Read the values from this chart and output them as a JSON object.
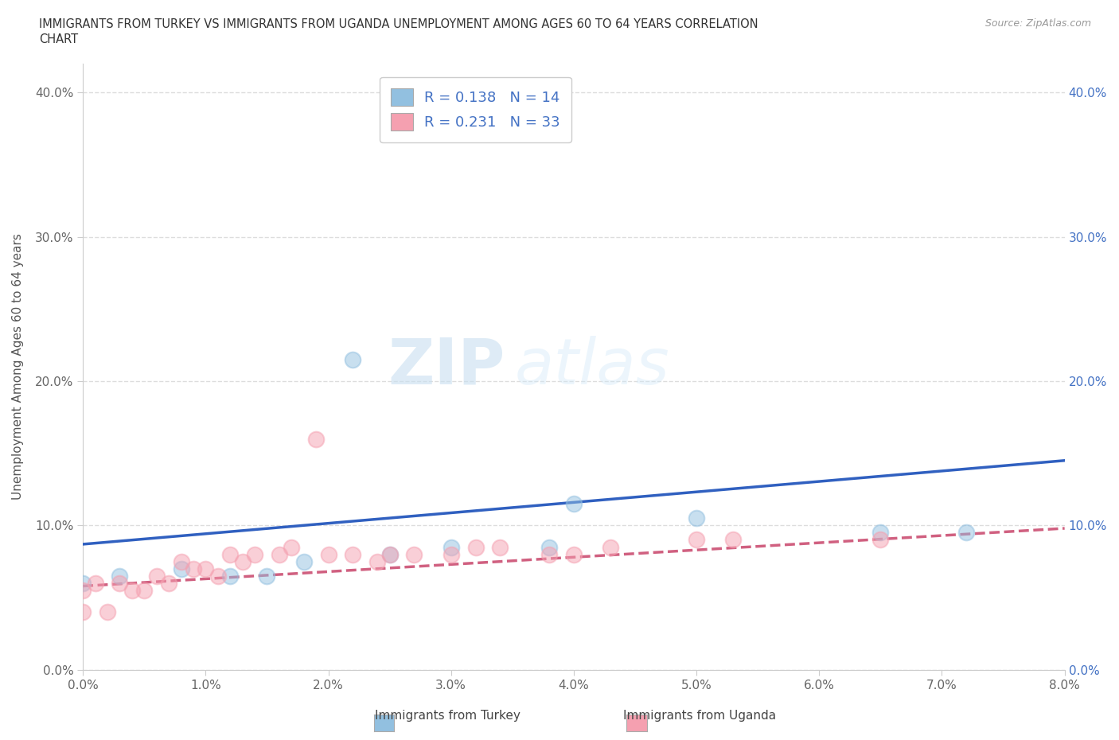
{
  "title_line1": "IMMIGRANTS FROM TURKEY VS IMMIGRANTS FROM UGANDA UNEMPLOYMENT AMONG AGES 60 TO 64 YEARS CORRELATION",
  "title_line2": "CHART",
  "source": "Source: ZipAtlas.com",
  "ylabel": "Unemployment Among Ages 60 to 64 years",
  "xlim": [
    0.0,
    0.08
  ],
  "ylim": [
    0.0,
    0.42
  ],
  "xticks": [
    0.0,
    0.01,
    0.02,
    0.03,
    0.04,
    0.05,
    0.06,
    0.07,
    0.08
  ],
  "xticklabels": [
    "0.0%",
    "1.0%",
    "2.0%",
    "3.0%",
    "4.0%",
    "5.0%",
    "6.0%",
    "7.0%",
    "8.0%"
  ],
  "yticks": [
    0.0,
    0.1,
    0.2,
    0.3,
    0.4
  ],
  "yticklabels": [
    "0.0%",
    "10.0%",
    "20.0%",
    "30.0%",
    "40.0%"
  ],
  "turkey_R": 0.138,
  "turkey_N": 14,
  "uganda_R": 0.231,
  "uganda_N": 33,
  "turkey_color": "#92c0e0",
  "uganda_color": "#f5a0b0",
  "turkey_line_color": "#3060c0",
  "uganda_line_color": "#d06080",
  "turkey_scatter_x": [
    0.0,
    0.003,
    0.008,
    0.012,
    0.015,
    0.018,
    0.022,
    0.025,
    0.03,
    0.038,
    0.04,
    0.05,
    0.065,
    0.072
  ],
  "turkey_scatter_y": [
    0.06,
    0.065,
    0.07,
    0.065,
    0.065,
    0.075,
    0.215,
    0.08,
    0.085,
    0.085,
    0.115,
    0.105,
    0.095,
    0.095
  ],
  "uganda_scatter_x": [
    0.0,
    0.0,
    0.001,
    0.002,
    0.003,
    0.004,
    0.005,
    0.006,
    0.007,
    0.008,
    0.009,
    0.01,
    0.011,
    0.012,
    0.013,
    0.014,
    0.016,
    0.017,
    0.019,
    0.02,
    0.022,
    0.024,
    0.025,
    0.027,
    0.03,
    0.032,
    0.034,
    0.038,
    0.04,
    0.043,
    0.05,
    0.053,
    0.065
  ],
  "uganda_scatter_y": [
    0.04,
    0.055,
    0.06,
    0.04,
    0.06,
    0.055,
    0.055,
    0.065,
    0.06,
    0.075,
    0.07,
    0.07,
    0.065,
    0.08,
    0.075,
    0.08,
    0.08,
    0.085,
    0.16,
    0.08,
    0.08,
    0.075,
    0.08,
    0.08,
    0.08,
    0.085,
    0.085,
    0.08,
    0.08,
    0.085,
    0.09,
    0.09,
    0.09
  ],
  "turkey_line_x0": 0.0,
  "turkey_line_y0": 0.087,
  "turkey_line_x1": 0.08,
  "turkey_line_y1": 0.145,
  "uganda_line_x0": 0.0,
  "uganda_line_y0": 0.058,
  "uganda_line_x1": 0.08,
  "uganda_line_y1": 0.098,
  "background_color": "#ffffff",
  "grid_color": "#dddddd",
  "watermark_zip": "ZIP",
  "watermark_atlas": "atlas",
  "watermark_color": "#d8e8f0",
  "legend_bottom_turkey": "Immigrants from Turkey",
  "legend_bottom_uganda": "Immigrants from Uganda"
}
